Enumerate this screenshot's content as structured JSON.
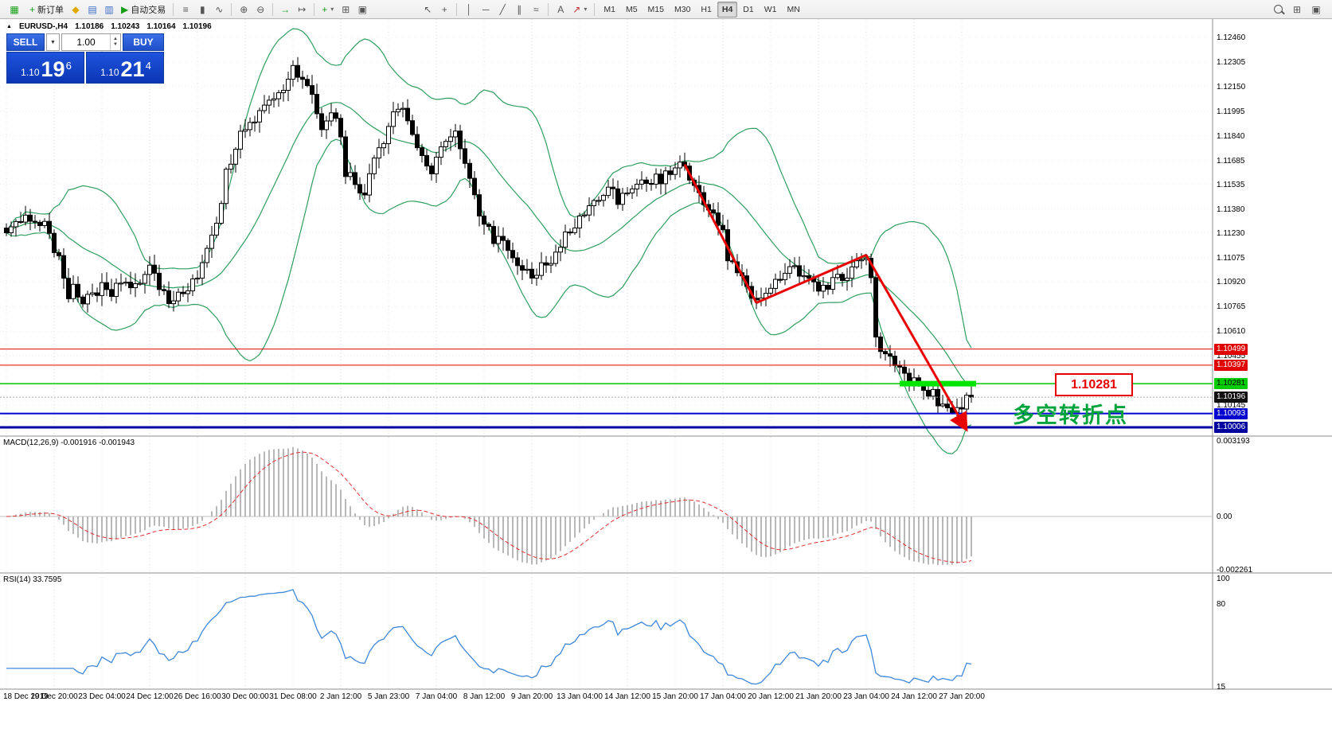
{
  "toolbar": {
    "new_order": "新订单",
    "auto_trading": "自动交易",
    "timeframes": [
      "M1",
      "M5",
      "M15",
      "M30",
      "H1",
      "H4",
      "D1",
      "W1",
      "MN"
    ],
    "active_timeframe": "H4"
  },
  "icons": {
    "app": "▦",
    "new_order_plus": "+",
    "market_watch": "◆",
    "data_window": "▤",
    "navigator": "▥",
    "autotrade_play": "▶",
    "chart_bars": "≡",
    "chart_candles": "▮",
    "chart_line": "∿",
    "zoom_in": "⊕",
    "zoom_out": "⊖",
    "auto_scroll": "→",
    "chart_shift": "↦",
    "indicators": "+",
    "tile_windows": "⊞",
    "cascade_windows": "▣",
    "cursor": "↖",
    "crosshair": "+",
    "vline": "│",
    "hline": "─",
    "trendline": "╱",
    "channel": "∥",
    "fibonacci": "≈",
    "text": "A",
    "arrows": "↗",
    "caret": "▾",
    "spin_up": "▲",
    "spin_down": "▼",
    "dropdown": "▼",
    "symbol_marker": "▲"
  },
  "chart_header": {
    "symbol": "EURUSD-,H4",
    "o": "1.10186",
    "h": "1.10243",
    "l": "1.10164",
    "c": "1.10196"
  },
  "trade_panel": {
    "sell_label": "SELL",
    "buy_label": "BUY",
    "volume": "1.00",
    "sell": {
      "prefix": "1.10",
      "big": "19",
      "pip": "6"
    },
    "buy": {
      "prefix": "1.10",
      "big": "21",
      "pip": "4"
    }
  },
  "indicators": {
    "macd_label": "MACD(12,26,9) -0.001916 -0.001943",
    "rsi_label": "RSI(14) 33.7595"
  },
  "annotations": {
    "price_label": "1.10281",
    "turning_point": "多空转折点"
  },
  "axes": {
    "price_ticks": [
      "1.12460",
      "1.12305",
      "1.12150",
      "1.11995",
      "1.11840",
      "1.11685",
      "1.11535",
      "1.11380",
      "1.11230",
      "1.11075",
      "1.10920",
      "1.10765",
      "1.10610",
      "1.10455",
      "1.10145"
    ],
    "price_badges": [
      {
        "value": "1.10499",
        "bg": "#e00000",
        "fg": "#ffffff"
      },
      {
        "value": "1.10397",
        "bg": "#e00000",
        "fg": "#ffffff"
      },
      {
        "value": "1.10281",
        "bg": "#00cc00",
        "fg": "#000000"
      },
      {
        "value": "1.10196",
        "bg": "#101010",
        "fg": "#ffffff"
      },
      {
        "value": "1.10093",
        "bg": "#0000d0",
        "fg": "#ffffff"
      },
      {
        "value": "1.10006",
        "bg": "#0000a0",
        "fg": "#ffffff"
      }
    ],
    "macd_ticks": [
      "0.003193",
      "0.00",
      "-0.002261"
    ],
    "rsi_ticks": [
      "100",
      "80",
      "15"
    ],
    "dates": [
      "18 Dec 2019",
      "19 Dec 20:00",
      "23 Dec 04:00",
      "24 Dec 12:00",
      "26 Dec 16:00",
      "30 Dec 00:00",
      "31 Dec 08:00",
      "2 Jan 12:00",
      "5 Jan 23:00",
      "7 Jan 04:00",
      "8 Jan 12:00",
      "9 Jan 20:00",
      "13 Jan 04:00",
      "14 Jan 12:00",
      "15 Jan 20:00",
      "17 Jan 04:00",
      "20 Jan 12:00",
      "21 Jan 20:00",
      "23 Jan 04:00",
      "24 Jan 12:00",
      "27 Jan 20:00"
    ]
  },
  "chart_data": {
    "type": "candlestick",
    "symbol": "EURUSD-",
    "timeframe": "H4",
    "bars": 203,
    "last_close": 1.10196,
    "price_range": [
      1.09956,
      1.12575
    ],
    "close_anchors": [
      [
        0,
        1.1122
      ],
      [
        2,
        1.1129
      ],
      [
        4,
        1.1136
      ],
      [
        5,
        1.1128
      ],
      [
        7,
        1.1131
      ],
      [
        9,
        1.1122
      ],
      [
        11,
        1.1105
      ],
      [
        13,
        1.1082
      ],
      [
        14,
        1.109
      ],
      [
        16,
        1.1078
      ],
      [
        18,
        1.1084
      ],
      [
        20,
        1.109
      ],
      [
        22,
        1.1083
      ],
      [
        24,
        1.1093
      ],
      [
        26,
        1.1089
      ],
      [
        28,
        1.1095
      ],
      [
        30,
        1.1099
      ],
      [
        32,
        1.1091
      ],
      [
        34,
        1.1079
      ],
      [
        36,
        1.1082
      ],
      [
        38,
        1.1086
      ],
      [
        40,
        1.1094
      ],
      [
        42,
        1.1112
      ],
      [
        44,
        1.1128
      ],
      [
        46,
        1.116
      ],
      [
        48,
        1.1178
      ],
      [
        50,
        1.1192
      ],
      [
        52,
        1.1197
      ],
      [
        54,
        1.1201
      ],
      [
        56,
        1.1208
      ],
      [
        58,
        1.1215
      ],
      [
        60,
        1.1226
      ],
      [
        62,
        1.1221
      ],
      [
        64,
        1.1211
      ],
      [
        66,
        1.1189
      ],
      [
        68,
        1.1198
      ],
      [
        70,
        1.1186
      ],
      [
        71,
        1.1162
      ],
      [
        73,
        1.1153
      ],
      [
        75,
        1.1146
      ],
      [
        77,
        1.1166
      ],
      [
        79,
        1.118
      ],
      [
        81,
        1.1197
      ],
      [
        83,
        1.1203
      ],
      [
        85,
        1.1181
      ],
      [
        87,
        1.1173
      ],
      [
        89,
        1.1158
      ],
      [
        91,
        1.1176
      ],
      [
        94,
        1.1183
      ],
      [
        96,
        1.1168
      ],
      [
        98,
        1.1145
      ],
      [
        100,
        1.1128
      ],
      [
        102,
        1.112
      ],
      [
        104,
        1.1114
      ],
      [
        106,
        1.1107
      ],
      [
        108,
        1.1101
      ],
      [
        110,
        1.1096
      ],
      [
        112,
        1.1102
      ],
      [
        114,
        1.1105
      ],
      [
        116,
        1.1115
      ],
      [
        118,
        1.1126
      ],
      [
        120,
        1.1134
      ],
      [
        122,
        1.1138
      ],
      [
        124,
        1.1143
      ],
      [
        126,
        1.1149
      ],
      [
        128,
        1.1144
      ],
      [
        130,
        1.1147
      ],
      [
        132,
        1.1151
      ],
      [
        134,
        1.1153
      ],
      [
        136,
        1.1157
      ],
      [
        138,
        1.1159
      ],
      [
        140,
        1.1163
      ],
      [
        142,
        1.1166
      ],
      [
        144,
        1.1151
      ],
      [
        146,
        1.1143
      ],
      [
        148,
        1.1135
      ],
      [
        150,
        1.1124
      ],
      [
        151,
        1.1106
      ],
      [
        153,
        1.1096
      ],
      [
        155,
        1.1088
      ],
      [
        157,
        1.1079
      ],
      [
        159,
        1.1089
      ],
      [
        161,
        1.1093
      ],
      [
        163,
        1.1097
      ],
      [
        165,
        1.1101
      ],
      [
        167,
        1.1093
      ],
      [
        169,
        1.1088
      ],
      [
        171,
        1.1087
      ],
      [
        173,
        1.1091
      ],
      [
        175,
        1.1095
      ],
      [
        177,
        1.1099
      ],
      [
        179,
        1.1104
      ],
      [
        180,
        1.1108
      ],
      [
        181,
        1.1092
      ],
      [
        182,
        1.1054
      ],
      [
        184,
        1.1047
      ],
      [
        186,
        1.1041
      ],
      [
        188,
        1.1033
      ],
      [
        190,
        1.1029
      ],
      [
        192,
        1.1027
      ],
      [
        194,
        1.1021
      ],
      [
        196,
        1.1015
      ],
      [
        197,
        1.1009
      ],
      [
        199,
        1.1013
      ],
      [
        201,
        1.1017
      ],
      [
        202,
        1.10196
      ]
    ],
    "levels": [
      {
        "price": 1.10499,
        "color": "#e80000",
        "width": 1
      },
      {
        "price": 1.10397,
        "color": "#e80000",
        "width": 1
      },
      {
        "price": 1.10281,
        "color": "#00c800",
        "width": 1.5
      },
      {
        "price": 1.10093,
        "color": "#0000d0",
        "width": 2
      },
      {
        "price": 1.10006,
        "color": "#0000a0",
        "width": 3
      }
    ],
    "trendlines": [
      {
        "i1": 142,
        "p1": 1.1166,
        "i2": 157,
        "p2": 1.1079,
        "arrow": false
      },
      {
        "i1": 157,
        "p1": 1.1079,
        "i2": 180,
        "p2": 1.1109,
        "arrow": false
      },
      {
        "i1": 180,
        "p1": 1.1109,
        "i2": 201,
        "p2": 1.0999,
        "arrow": true
      }
    ],
    "trendline_style": {
      "color": "#e80000",
      "width": 3
    },
    "highlight_segment": {
      "i1": 187,
      "i2": 203,
      "price": 1.10281,
      "color": "#00e400",
      "height": 7
    },
    "bollinger": {
      "period": 20,
      "deviation": 2,
      "color": "#2f9e5f"
    },
    "macd": {
      "fast": 12,
      "slow": 26,
      "signal": 9,
      "hist_color": "#b8b8b8",
      "signal_color": "#e03030",
      "current": [
        -0.001916,
        -0.001943
      ]
    },
    "rsi": {
      "period": 14,
      "current": 33.7595,
      "color": "#3f87d9",
      "range": [
        13,
        104
      ]
    }
  }
}
